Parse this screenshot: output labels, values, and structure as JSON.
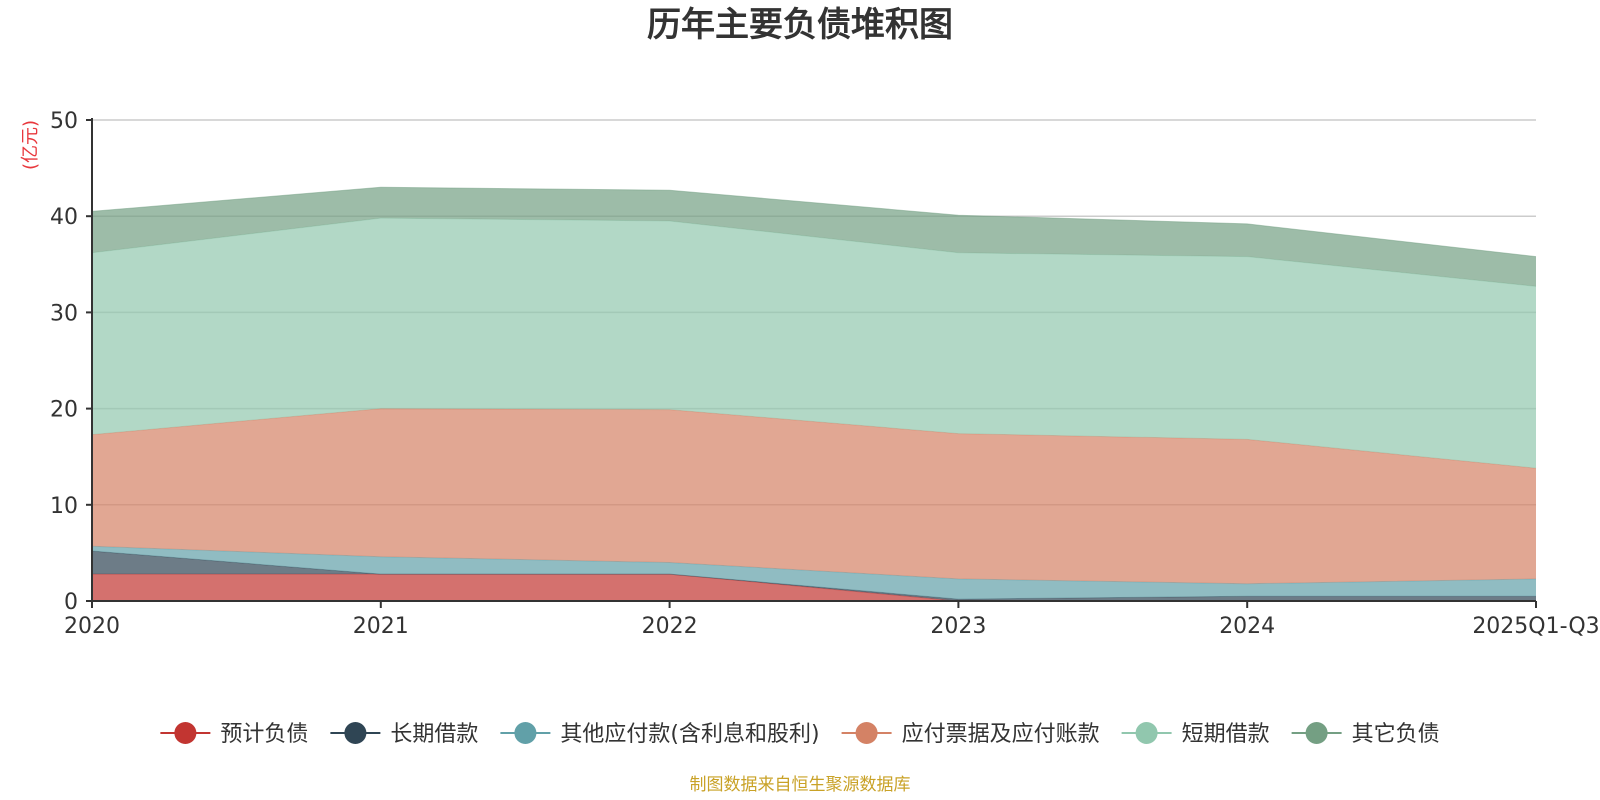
{
  "chart_data": {
    "type": "area",
    "stacked": true,
    "title": "历年主要负债堆积图",
    "unit_label": "(亿元)",
    "xlabel": "",
    "ylabel": "(亿元)",
    "ylim": [
      0,
      50
    ],
    "y_ticks": [
      "0",
      "10",
      "20",
      "30",
      "40",
      "50"
    ],
    "categories": [
      "2020",
      "2021",
      "2022",
      "2023",
      "2024",
      "2025Q1-Q3"
    ],
    "grid": true,
    "legend_position": "bottom",
    "series": [
      {
        "name": "预计负债",
        "color": "#c23531",
        "values": [
          2.8,
          2.8,
          2.8,
          0.0,
          0.0,
          0.0
        ]
      },
      {
        "name": "长期借款",
        "color": "#2f4554",
        "values": [
          2.4,
          0.0,
          0.0,
          0.2,
          0.5,
          0.5
        ]
      },
      {
        "name": "其他应付款(含利息和股利)",
        "color": "#61a0a8",
        "values": [
          0.5,
          1.8,
          1.2,
          2.1,
          1.3,
          1.8
        ]
      },
      {
        "name": "应付票据及应付账款",
        "color": "#d48265",
        "values": [
          11.6,
          15.4,
          15.9,
          15.1,
          15.0,
          11.5
        ]
      },
      {
        "name": "短期借款",
        "color": "#91c7ae",
        "values": [
          18.9,
          19.8,
          19.6,
          18.8,
          19.0,
          18.9
        ]
      },
      {
        "name": "其它负债",
        "color": "#749f83",
        "values": [
          4.3,
          3.2,
          3.2,
          3.9,
          3.4,
          3.1
        ]
      }
    ],
    "source": "制图数据来自恒生聚源数据库"
  }
}
